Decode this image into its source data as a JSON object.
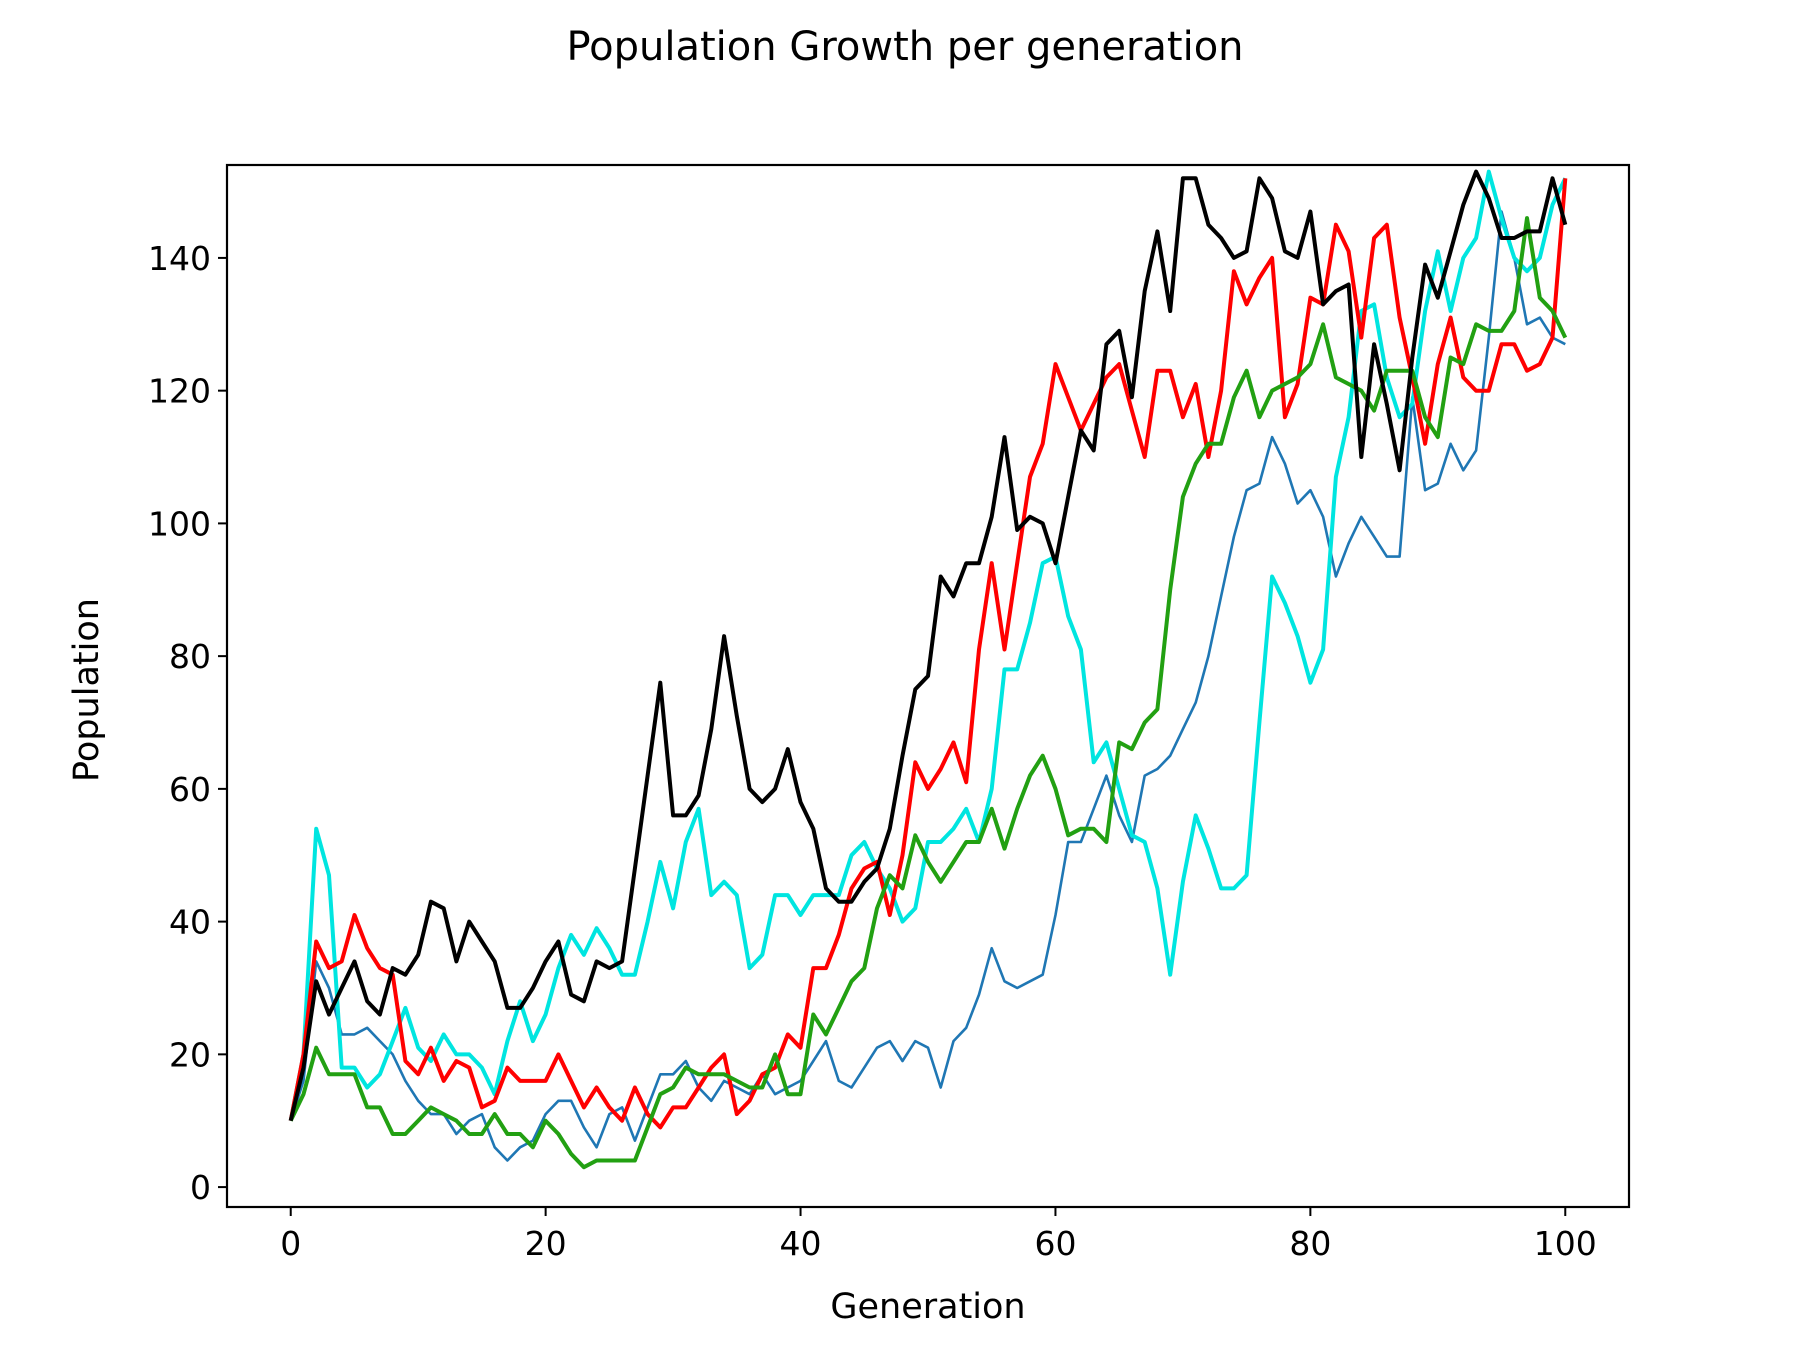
{
  "chart_data": {
    "type": "line",
    "title": "Population Growth per generation",
    "xlabel": "Generation",
    "ylabel": "Population",
    "xlim": [
      -5,
      105
    ],
    "ylim": [
      -3,
      154
    ],
    "xticks": [
      0,
      20,
      40,
      60,
      80,
      100
    ],
    "yticks": [
      0,
      20,
      40,
      60,
      80,
      100,
      120,
      140
    ],
    "grid": false,
    "legend": "none",
    "x": "0..100 (one point per generation)",
    "series": [
      {
        "color": "#1f77b4",
        "width": "thin",
        "values": [
          10,
          16,
          34,
          30,
          23,
          23,
          24,
          22,
          20,
          16,
          13,
          11,
          11,
          8,
          10,
          11,
          6,
          4,
          6,
          7,
          11,
          13,
          13,
          9,
          6,
          11,
          12,
          7,
          12,
          17,
          17,
          19,
          15,
          13,
          16,
          15,
          14,
          17,
          14,
          15,
          16,
          19,
          22,
          16,
          15,
          18,
          21,
          22,
          19,
          22,
          21,
          15,
          22,
          24,
          29,
          36,
          31,
          30,
          31,
          32,
          41,
          52,
          52,
          57,
          62,
          56,
          52,
          62,
          63,
          65,
          69,
          73,
          80,
          89,
          98,
          105,
          106,
          113,
          109,
          103,
          105,
          101,
          92,
          97,
          101,
          98,
          95,
          95,
          119,
          105,
          106,
          112,
          108,
          111,
          128,
          147,
          140,
          130,
          131,
          128,
          127
        ]
      },
      {
        "color": "#00e5e0",
        "width": "thick",
        "values": [
          10,
          20,
          54,
          47,
          18,
          18,
          15,
          17,
          22,
          27,
          21,
          19,
          23,
          20,
          20,
          18,
          14,
          22,
          28,
          22,
          26,
          33,
          38,
          35,
          39,
          36,
          32,
          32,
          40,
          49,
          42,
          52,
          57,
          44,
          46,
          44,
          33,
          35,
          44,
          44,
          41,
          44,
          44,
          44,
          50,
          52,
          48,
          45,
          40,
          42,
          52,
          52,
          54,
          57,
          52,
          60,
          78,
          78,
          85,
          94,
          95,
          86,
          81,
          64,
          67,
          60,
          53,
          52,
          45,
          32,
          46,
          56,
          51,
          45,
          45,
          47,
          70,
          92,
          88,
          83,
          76,
          81,
          107,
          116,
          132,
          133,
          122,
          116,
          118,
          132,
          141,
          132,
          140,
          143,
          153,
          146,
          140,
          138,
          140,
          148,
          152
        ]
      },
      {
        "color": "#ff0000",
        "width": "thick",
        "values": [
          10,
          20,
          37,
          33,
          34,
          41,
          36,
          33,
          32,
          19,
          17,
          21,
          16,
          19,
          18,
          12,
          13,
          18,
          16,
          16,
          16,
          20,
          16,
          12,
          15,
          12,
          10,
          15,
          11,
          9,
          12,
          12,
          15,
          18,
          20,
          11,
          13,
          17,
          18,
          23,
          21,
          33,
          33,
          38,
          45,
          48,
          49,
          41,
          50,
          64,
          60,
          63,
          67,
          61,
          81,
          94,
          81,
          94,
          107,
          112,
          124,
          119,
          114,
          118,
          122,
          124,
          117,
          110,
          123,
          123,
          116,
          121,
          110,
          120,
          138,
          133,
          137,
          140,
          116,
          121,
          134,
          133,
          145,
          141,
          128,
          143,
          145,
          131,
          122,
          112,
          124,
          131,
          122,
          120,
          120,
          127,
          127,
          123,
          124,
          128,
          152
        ]
      },
      {
        "color": "#22a012",
        "width": "thick",
        "values": [
          10,
          14,
          21,
          17,
          17,
          17,
          12,
          12,
          8,
          8,
          10,
          12,
          11,
          10,
          8,
          8,
          11,
          8,
          8,
          6,
          10,
          8,
          5,
          3,
          4,
          4,
          4,
          4,
          9,
          14,
          15,
          18,
          17,
          17,
          17,
          16,
          15,
          15,
          20,
          14,
          14,
          26,
          23,
          27,
          31,
          33,
          42,
          47,
          45,
          53,
          49,
          46,
          49,
          52,
          52,
          57,
          51,
          57,
          62,
          65,
          60,
          53,
          54,
          54,
          52,
          67,
          66,
          70,
          72,
          90,
          104,
          109,
          112,
          112,
          119,
          123,
          116,
          120,
          121,
          122,
          124,
          130,
          122,
          121,
          120,
          117,
          123,
          123,
          123,
          116,
          113,
          125,
          124,
          130,
          129,
          129,
          132,
          146,
          134,
          132,
          128
        ]
      },
      {
        "color": "#000000",
        "width": "thick",
        "values": [
          10,
          18,
          31,
          26,
          30,
          34,
          28,
          26,
          33,
          32,
          35,
          43,
          42,
          34,
          40,
          37,
          34,
          27,
          27,
          30,
          34,
          37,
          29,
          28,
          34,
          33,
          34,
          48,
          62,
          76,
          56,
          56,
          59,
          69,
          83,
          71,
          60,
          58,
          60,
          66,
          58,
          54,
          45,
          43,
          43,
          46,
          48,
          54,
          65,
          75,
          77,
          92,
          89,
          94,
          94,
          101,
          113,
          99,
          101,
          100,
          94,
          104,
          114,
          111,
          127,
          129,
          119,
          135,
          144,
          132,
          152,
          152,
          145,
          143,
          140,
          141,
          152,
          149,
          141,
          140,
          147,
          133,
          135,
          136,
          110,
          127,
          118,
          108,
          125,
          139,
          134,
          141,
          148,
          153,
          149,
          143,
          143,
          144,
          144,
          152,
          145
        ]
      }
    ]
  }
}
